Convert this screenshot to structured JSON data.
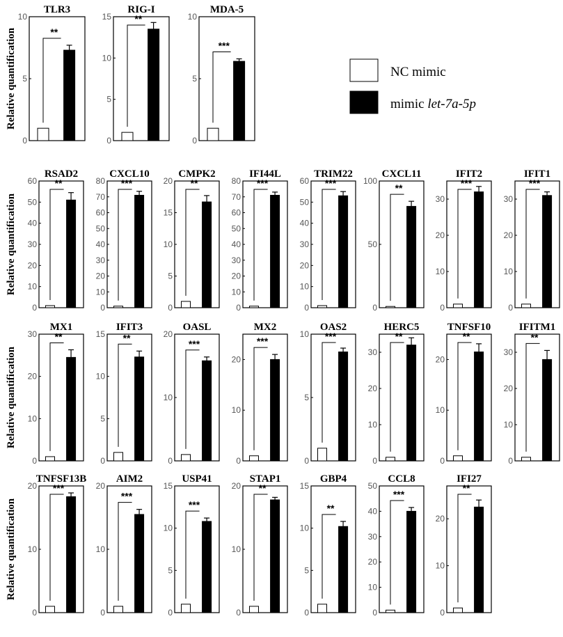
{
  "legend": {
    "items": [
      {
        "label": "NC mimic",
        "label_italic": "",
        "color": "#ffffff"
      },
      {
        "label": "mimic ",
        "label_italic": "let-7a-5p",
        "color": "#000000"
      }
    ]
  },
  "row_ylabels": [
    "Relative quantification",
    "Relative quantification",
    "Relative quantification",
    "Relative quantification"
  ],
  "colors": {
    "nc": "#ffffff",
    "mimic": "#000000",
    "stroke": "#000000"
  },
  "chart_data": [
    {
      "type": "bar",
      "row": 0,
      "title": "TLR3",
      "categories": [
        "NC mimic",
        "mimic let-7a-5p"
      ],
      "values": [
        1,
        7.3
      ],
      "errors": [
        0,
        0.4
      ],
      "ylim": [
        0,
        10
      ],
      "yticks": [
        0,
        5,
        10
      ],
      "significance": "**"
    },
    {
      "type": "bar",
      "row": 0,
      "title": "RIG-I",
      "categories": [
        "NC mimic",
        "mimic let-7a-5p"
      ],
      "values": [
        1,
        13.5
      ],
      "errors": [
        0,
        0.8
      ],
      "ylim": [
        0,
        15
      ],
      "yticks": [
        0,
        5,
        10,
        15
      ],
      "significance": "**"
    },
    {
      "type": "bar",
      "row": 0,
      "title": "MDA-5",
      "categories": [
        "NC mimic",
        "mimic let-7a-5p"
      ],
      "values": [
        1,
        6.4
      ],
      "errors": [
        0,
        0.2
      ],
      "ylim": [
        0,
        10
      ],
      "yticks": [
        0,
        5,
        10
      ],
      "significance": "***"
    },
    {
      "type": "bar",
      "row": 1,
      "title": "RSAD2",
      "categories": [
        "NC mimic",
        "mimic let-7a-5p"
      ],
      "values": [
        1,
        51
      ],
      "errors": [
        0,
        3.5
      ],
      "ylim": [
        0,
        60
      ],
      "yticks": [
        0,
        10,
        20,
        30,
        40,
        50,
        60
      ],
      "significance": "**"
    },
    {
      "type": "bar",
      "row": 1,
      "title": "CXCL10",
      "categories": [
        "NC mimic",
        "mimic let-7a-5p"
      ],
      "values": [
        1,
        71
      ],
      "errors": [
        0,
        2.5
      ],
      "ylim": [
        0,
        80
      ],
      "yticks": [
        0,
        10,
        20,
        30,
        40,
        50,
        60,
        70,
        80
      ],
      "significance": "***"
    },
    {
      "type": "bar",
      "row": 1,
      "title": "CMPK2",
      "categories": [
        "NC mimic",
        "mimic let-7a-5p"
      ],
      "values": [
        1,
        16.7
      ],
      "errors": [
        0,
        1.0
      ],
      "ylim": [
        0,
        20
      ],
      "yticks": [
        0,
        5,
        10,
        15,
        20
      ],
      "significance": "**"
    },
    {
      "type": "bar",
      "row": 1,
      "title": "IFI44L",
      "categories": [
        "NC mimic",
        "mimic let-7a-5p"
      ],
      "values": [
        1,
        71
      ],
      "errors": [
        0,
        2
      ],
      "ylim": [
        0,
        80
      ],
      "yticks": [
        0,
        10,
        20,
        30,
        40,
        50,
        60,
        70,
        80
      ],
      "significance": "***"
    },
    {
      "type": "bar",
      "row": 1,
      "title": "TRIM22",
      "categories": [
        "NC mimic",
        "mimic let-7a-5p"
      ],
      "values": [
        1,
        53
      ],
      "errors": [
        0,
        2
      ],
      "ylim": [
        0,
        60
      ],
      "yticks": [
        0,
        10,
        20,
        30,
        40,
        50,
        60
      ],
      "significance": "***"
    },
    {
      "type": "bar",
      "row": 1,
      "title": "CXCL11",
      "categories": [
        "NC mimic",
        "mimic let-7a-5p"
      ],
      "values": [
        1,
        80
      ],
      "errors": [
        0,
        4
      ],
      "ylim": [
        0,
        100
      ],
      "yticks": [
        0,
        50,
        100
      ],
      "significance": "**"
    },
    {
      "type": "bar",
      "row": 1,
      "title": "IFIT2",
      "categories": [
        "NC mimic",
        "mimic let-7a-5p"
      ],
      "values": [
        1,
        32
      ],
      "errors": [
        0,
        1.5
      ],
      "ylim": [
        0,
        35
      ],
      "yticks": [
        0,
        10,
        20,
        30
      ],
      "significance": "***"
    },
    {
      "type": "bar",
      "row": 1,
      "title": "IFIT1",
      "categories": [
        "NC mimic",
        "mimic let-7a-5p"
      ],
      "values": [
        1,
        31
      ],
      "errors": [
        0,
        1
      ],
      "ylim": [
        0,
        35
      ],
      "yticks": [
        0,
        10,
        20,
        30
      ],
      "significance": "***"
    },
    {
      "type": "bar",
      "row": 2,
      "title": "MX1",
      "categories": [
        "NC mimic",
        "mimic let-7a-5p"
      ],
      "values": [
        1,
        24.5
      ],
      "errors": [
        0,
        1.8
      ],
      "ylim": [
        0,
        30
      ],
      "yticks": [
        0,
        10,
        20,
        30
      ],
      "significance": "**"
    },
    {
      "type": "bar",
      "row": 2,
      "title": "IFIT3",
      "categories": [
        "NC mimic",
        "mimic let-7a-5p"
      ],
      "values": [
        1,
        12.3
      ],
      "errors": [
        0,
        0.7
      ],
      "ylim": [
        0,
        15
      ],
      "yticks": [
        0,
        5,
        10,
        15
      ],
      "significance": "**"
    },
    {
      "type": "bar",
      "row": 2,
      "title": "OASL",
      "categories": [
        "NC mimic",
        "mimic let-7a-5p"
      ],
      "values": [
        1,
        15.8
      ],
      "errors": [
        0,
        0.6
      ],
      "ylim": [
        0,
        20
      ],
      "yticks": [
        0,
        10,
        20
      ],
      "significance": "***"
    },
    {
      "type": "bar",
      "row": 2,
      "title": "MX2",
      "categories": [
        "NC mimic",
        "mimic let-7a-5p"
      ],
      "values": [
        1,
        20
      ],
      "errors": [
        0,
        1
      ],
      "ylim": [
        0,
        25
      ],
      "yticks": [
        0,
        10,
        20
      ],
      "significance": "***"
    },
    {
      "type": "bar",
      "row": 2,
      "title": "OAS2",
      "categories": [
        "NC mimic",
        "mimic let-7a-5p"
      ],
      "values": [
        1,
        8.6
      ],
      "errors": [
        0,
        0.3
      ],
      "ylim": [
        0,
        10
      ],
      "yticks": [
        0,
        5,
        10
      ],
      "significance": "***"
    },
    {
      "type": "bar",
      "row": 2,
      "title": "HERC5",
      "categories": [
        "NC mimic",
        "mimic let-7a-5p"
      ],
      "values": [
        1,
        32
      ],
      "errors": [
        0,
        2
      ],
      "ylim": [
        0,
        35
      ],
      "yticks": [
        0,
        10,
        20,
        30
      ],
      "significance": "**"
    },
    {
      "type": "bar",
      "row": 2,
      "title": "TNFSF10",
      "categories": [
        "NC mimic",
        "mimic let-7a-5p"
      ],
      "values": [
        1,
        21.5
      ],
      "errors": [
        0,
        1.6
      ],
      "ylim": [
        0,
        25
      ],
      "yticks": [
        0,
        10,
        20
      ],
      "significance": "**"
    },
    {
      "type": "bar",
      "row": 2,
      "title": "IFITM1",
      "categories": [
        "NC mimic",
        "mimic let-7a-5p"
      ],
      "values": [
        1,
        28
      ],
      "errors": [
        0,
        2.5
      ],
      "ylim": [
        0,
        35
      ],
      "yticks": [
        0,
        10,
        20,
        30
      ],
      "significance": "**"
    },
    {
      "type": "bar",
      "row": 3,
      "title": "TNFSF13B",
      "categories": [
        "NC mimic",
        "mimic let-7a-5p"
      ],
      "values": [
        1,
        18.3
      ],
      "errors": [
        0,
        0.6
      ],
      "ylim": [
        0,
        20
      ],
      "yticks": [
        0,
        10,
        20
      ],
      "significance": "***"
    },
    {
      "type": "bar",
      "row": 3,
      "title": "AIM2",
      "categories": [
        "NC mimic",
        "mimic let-7a-5p"
      ],
      "values": [
        1,
        15.5
      ],
      "errors": [
        0,
        0.8
      ],
      "ylim": [
        0,
        20
      ],
      "yticks": [
        0,
        10,
        20
      ],
      "significance": "***"
    },
    {
      "type": "bar",
      "row": 3,
      "title": "USP41",
      "categories": [
        "NC mimic",
        "mimic let-7a-5p"
      ],
      "values": [
        1,
        10.8
      ],
      "errors": [
        0,
        0.4
      ],
      "ylim": [
        0,
        15
      ],
      "yticks": [
        0,
        5,
        10,
        15
      ],
      "significance": "***"
    },
    {
      "type": "bar",
      "row": 3,
      "title": "STAP1",
      "categories": [
        "NC mimic",
        "mimic let-7a-5p"
      ],
      "values": [
        1,
        17.8
      ],
      "errors": [
        0,
        0.4
      ],
      "ylim": [
        0,
        20
      ],
      "yticks": [
        0,
        10,
        20
      ],
      "significance": "**"
    },
    {
      "type": "bar",
      "row": 3,
      "title": "GBP4",
      "categories": [
        "NC mimic",
        "mimic let-7a-5p"
      ],
      "values": [
        1,
        10.2
      ],
      "errors": [
        0,
        0.6
      ],
      "ylim": [
        0,
        15
      ],
      "yticks": [
        0,
        5,
        10,
        15
      ],
      "significance": "**"
    },
    {
      "type": "bar",
      "row": 3,
      "title": "CCL8",
      "categories": [
        "NC mimic",
        "mimic let-7a-5p"
      ],
      "values": [
        1,
        40
      ],
      "errors": [
        0,
        1.5
      ],
      "ylim": [
        0,
        50
      ],
      "yticks": [
        0,
        10,
        20,
        30,
        40,
        50
      ],
      "significance": "***"
    },
    {
      "type": "bar",
      "row": 3,
      "title": "IFI27",
      "categories": [
        "NC mimic",
        "mimic let-7a-5p"
      ],
      "values": [
        1,
        22.5
      ],
      "errors": [
        0,
        1.5
      ],
      "ylim": [
        0,
        27
      ],
      "yticks": [
        0,
        10,
        20
      ],
      "significance": "**"
    }
  ]
}
